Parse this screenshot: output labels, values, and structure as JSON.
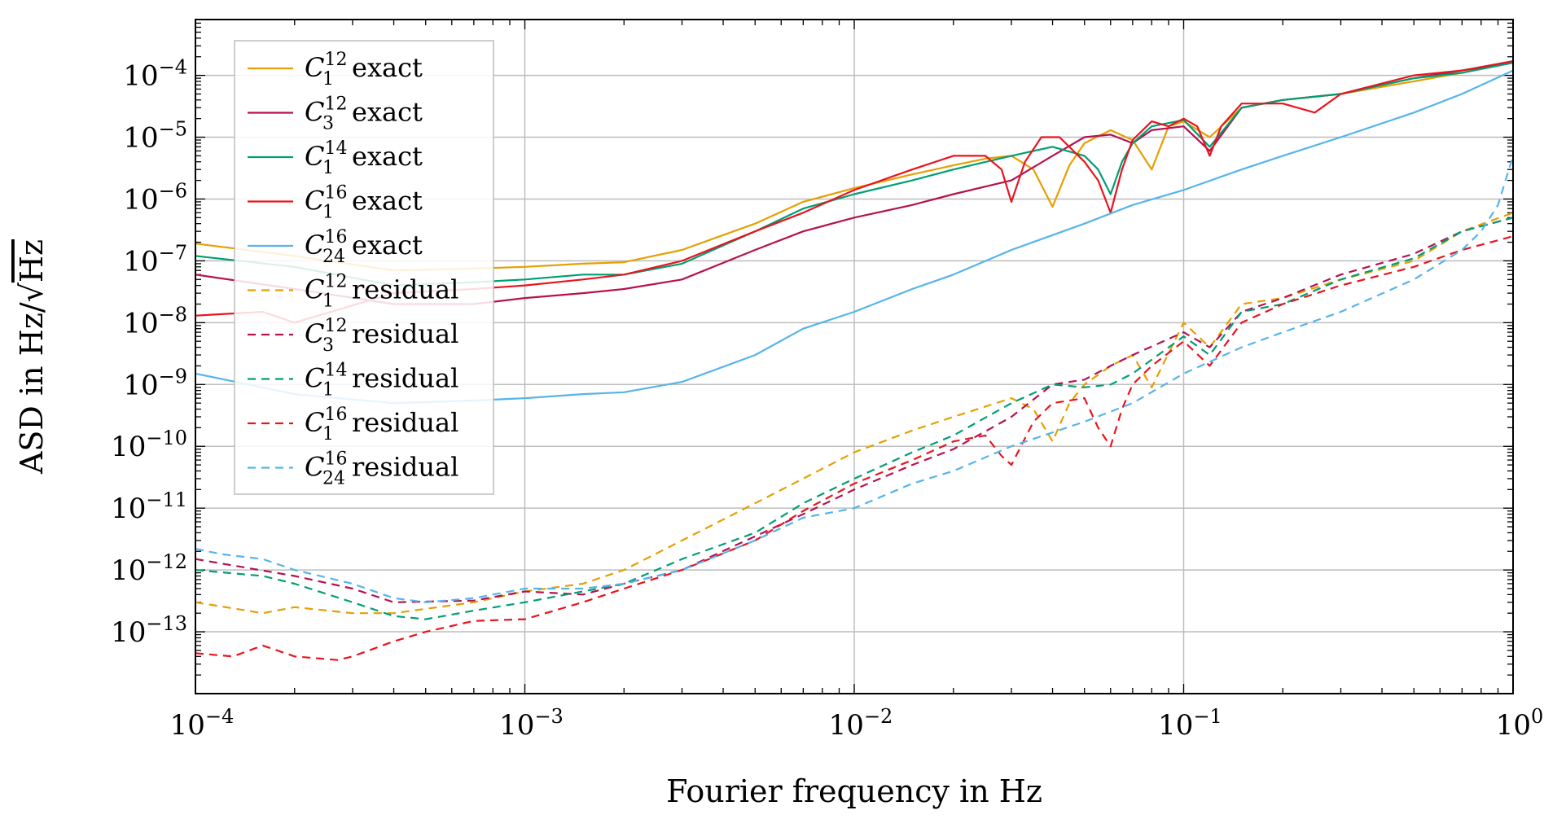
{
  "chart_data": {
    "type": "line",
    "xscale": "log",
    "yscale": "log",
    "xlabel": "Fourier frequency in Hz",
    "ylabel_prefix": "ASD in Hz/",
    "ylabel_radicand": "Hz",
    "xlim": [
      0.0001,
      1
    ],
    "ylim": [
      1e-14,
      0.0008
    ],
    "x_ticks": [
      {
        "base": "10",
        "exp": "−4",
        "value": 0.0001
      },
      {
        "base": "10",
        "exp": "−3",
        "value": 0.001
      },
      {
        "base": "10",
        "exp": "−2",
        "value": 0.01
      },
      {
        "base": "10",
        "exp": "−1",
        "value": 0.1
      },
      {
        "base": "10",
        "exp": "0",
        "value": 1
      }
    ],
    "y_ticks": [
      {
        "base": "10",
        "exp": "−4",
        "value": 0.0001
      },
      {
        "base": "10",
        "exp": "−5",
        "value": 1e-05
      },
      {
        "base": "10",
        "exp": "−6",
        "value": 1e-06
      },
      {
        "base": "10",
        "exp": "−7",
        "value": 1e-07
      },
      {
        "base": "10",
        "exp": "−8",
        "value": 1e-08
      },
      {
        "base": "10",
        "exp": "−9",
        "value": 1e-09
      },
      {
        "base": "10",
        "exp": "−10",
        "value": 1e-10
      },
      {
        "base": "10",
        "exp": "−11",
        "value": 1e-11
      },
      {
        "base": "10",
        "exp": "−12",
        "value": 1e-12
      },
      {
        "base": "10",
        "exp": "−13",
        "value": 1e-13
      }
    ],
    "legend_position": "top-left",
    "series": [
      {
        "name": "C1^12 exact",
        "base": "C",
        "sub": "1",
        "sup": "12",
        "suffix": "exact",
        "color": "#e69f00",
        "dash": "solid",
        "x": [
          0.0001,
          0.0002,
          0.0004,
          0.0007,
          0.001,
          0.0015,
          0.002,
          0.003,
          0.005,
          0.007,
          0.01,
          0.015,
          0.02,
          0.025,
          0.03,
          0.035,
          0.04,
          0.045,
          0.05,
          0.06,
          0.07,
          0.08,
          0.09,
          0.1,
          0.12,
          0.15,
          0.2,
          0.3,
          0.5,
          0.7,
          1
        ],
        "y": [
          1.9e-07,
          1.2e-07,
          7e-08,
          7.5e-08,
          8e-08,
          9e-08,
          9.5e-08,
          1.5e-07,
          4e-07,
          9e-07,
          1.5e-06,
          2.5e-06,
          3.5e-06,
          4.5e-06,
          5e-06,
          3e-06,
          7.5e-07,
          3.5e-06,
          8e-06,
          1.3e-05,
          9e-06,
          3e-06,
          1.5e-05,
          1.8e-05,
          1e-05,
          3e-05,
          4e-05,
          5e-05,
          8e-05,
          0.00011,
          0.00017
        ]
      },
      {
        "name": "C3^12 exact",
        "base": "C",
        "sub": "3",
        "sup": "12",
        "suffix": "exact",
        "color": "#b5124f",
        "dash": "solid",
        "x": [
          0.0001,
          0.0002,
          0.0004,
          0.0007,
          0.001,
          0.0015,
          0.002,
          0.003,
          0.005,
          0.007,
          0.01,
          0.015,
          0.02,
          0.03,
          0.04,
          0.05,
          0.06,
          0.07,
          0.08,
          0.1,
          0.12,
          0.15,
          0.2,
          0.3,
          0.5,
          0.7,
          1
        ],
        "y": [
          6e-08,
          3.5e-08,
          2e-08,
          2e-08,
          2.5e-08,
          3e-08,
          3.5e-08,
          5e-08,
          1.5e-07,
          3e-07,
          5e-07,
          8e-07,
          1.2e-06,
          2e-06,
          5e-06,
          1e-05,
          1.1e-05,
          8e-06,
          1.3e-05,
          1.5e-05,
          6e-06,
          3e-05,
          4e-05,
          5e-05,
          9e-05,
          0.00012,
          0.00016
        ]
      },
      {
        "name": "C1^14 exact",
        "base": "C",
        "sub": "1",
        "sup": "14",
        "suffix": "exact",
        "color": "#009e73",
        "dash": "solid",
        "x": [
          0.0001,
          0.0002,
          0.0004,
          0.0007,
          0.001,
          0.0015,
          0.002,
          0.003,
          0.005,
          0.007,
          0.01,
          0.015,
          0.02,
          0.03,
          0.04,
          0.05,
          0.055,
          0.06,
          0.065,
          0.07,
          0.08,
          0.1,
          0.12,
          0.15,
          0.2,
          0.3,
          0.5,
          0.7,
          1
        ],
        "y": [
          1.2e-07,
          8e-08,
          4e-08,
          4.5e-08,
          5e-08,
          6e-08,
          6e-08,
          9e-08,
          3e-07,
          7e-07,
          1.2e-06,
          2e-06,
          3e-06,
          5e-06,
          7e-06,
          5e-06,
          3e-06,
          1.2e-06,
          4e-06,
          8e-06,
          1.5e-05,
          1.9e-05,
          7e-06,
          3e-05,
          4e-05,
          5e-05,
          9e-05,
          0.00011,
          0.00016
        ]
      },
      {
        "name": "C1^16 exact",
        "base": "C",
        "sub": "1",
        "sup": "16",
        "suffix": "exact",
        "color": "#e8141e",
        "dash": "solid",
        "x": [
          0.0001,
          0.00016,
          0.0002,
          0.0004,
          0.0007,
          0.001,
          0.0015,
          0.002,
          0.003,
          0.005,
          0.007,
          0.01,
          0.015,
          0.02,
          0.025,
          0.028,
          0.03,
          0.033,
          0.037,
          0.042,
          0.05,
          0.055,
          0.06,
          0.065,
          0.07,
          0.08,
          0.09,
          0.1,
          0.11,
          0.12,
          0.13,
          0.15,
          0.2,
          0.25,
          0.3,
          0.5,
          0.7,
          1
        ],
        "y": [
          1.3e-08,
          1.5e-08,
          1e-08,
          3e-08,
          3.5e-08,
          4e-08,
          5e-08,
          6e-08,
          1e-07,
          3e-07,
          6e-07,
          1.4e-06,
          3e-06,
          5e-06,
          5e-06,
          3e-06,
          9e-07,
          4e-06,
          1e-05,
          1e-05,
          4e-06,
          2e-06,
          6e-07,
          3e-06,
          9e-06,
          1.8e-05,
          1.5e-05,
          2e-05,
          1.5e-05,
          5e-06,
          1.5e-05,
          3.5e-05,
          3.5e-05,
          2.5e-05,
          5e-05,
          0.0001,
          0.00012,
          0.00017
        ]
      },
      {
        "name": "C24^16 exact",
        "base": "C",
        "sub": "24",
        "sup": "16",
        "suffix": "exact",
        "color": "#56b4e9",
        "dash": "solid",
        "x": [
          0.0001,
          0.0002,
          0.0004,
          0.0007,
          0.001,
          0.0015,
          0.002,
          0.003,
          0.005,
          0.007,
          0.01,
          0.015,
          0.02,
          0.03,
          0.05,
          0.07,
          0.1,
          0.15,
          0.2,
          0.3,
          0.5,
          0.7,
          1
        ],
        "y": [
          1.5e-09,
          7e-10,
          5e-10,
          5.5e-10,
          6e-10,
          7e-10,
          7.5e-10,
          1.1e-09,
          3e-09,
          8e-09,
          1.5e-08,
          3.5e-08,
          6e-08,
          1.5e-07,
          4e-07,
          8e-07,
          1.4e-06,
          3e-06,
          5e-06,
          1e-05,
          2.5e-05,
          5e-05,
          0.00012
        ]
      },
      {
        "name": "C1^12 residual",
        "base": "C",
        "sub": "1",
        "sup": "12",
        "suffix": "residual",
        "color": "#e69f00",
        "dash": "dashed",
        "x": [
          0.0001,
          0.00016,
          0.0002,
          0.0003,
          0.0004,
          0.0007,
          0.001,
          0.0015,
          0.002,
          0.003,
          0.005,
          0.007,
          0.01,
          0.015,
          0.02,
          0.03,
          0.035,
          0.04,
          0.045,
          0.05,
          0.06,
          0.07,
          0.08,
          0.1,
          0.12,
          0.15,
          0.2,
          0.3,
          0.5,
          0.7,
          1
        ],
        "y": [
          3e-13,
          2e-13,
          2.5e-13,
          2e-13,
          2e-13,
          3e-13,
          4.5e-13,
          6e-13,
          1e-12,
          3e-12,
          1.2e-11,
          3e-11,
          8e-11,
          1.8e-10,
          3e-10,
          6e-10,
          4e-10,
          1.2e-10,
          5e-10,
          1e-09,
          2e-09,
          3e-09,
          9e-10,
          1e-08,
          4e-09,
          2e-08,
          2.5e-08,
          5e-08,
          1e-07,
          3e-07,
          6e-07
        ]
      },
      {
        "name": "C3^12 residual",
        "base": "C",
        "sub": "3",
        "sup": "12",
        "suffix": "residual",
        "color": "#b5124f",
        "dash": "dashed",
        "x": [
          0.0001,
          0.0002,
          0.0003,
          0.0004,
          0.0007,
          0.001,
          0.0015,
          0.002,
          0.003,
          0.005,
          0.007,
          0.01,
          0.015,
          0.02,
          0.03,
          0.04,
          0.05,
          0.06,
          0.07,
          0.1,
          0.12,
          0.15,
          0.2,
          0.3,
          0.5,
          0.7,
          1
        ],
        "y": [
          1.5e-12,
          8e-13,
          5e-13,
          3e-13,
          3.2e-13,
          4.5e-13,
          4e-13,
          6e-13,
          1e-12,
          3.5e-12,
          8e-12,
          2e-11,
          5e-11,
          9e-11,
          3e-10,
          1e-09,
          1.2e-09,
          2e-09,
          3e-09,
          7e-09,
          4e-09,
          1.5e-08,
          2.5e-08,
          6e-08,
          1.3e-07,
          3e-07,
          5e-07
        ]
      },
      {
        "name": "C1^14 residual",
        "base": "C",
        "sub": "1",
        "sup": "14",
        "suffix": "residual",
        "color": "#009e73",
        "dash": "dashed",
        "x": [
          0.0001,
          0.00016,
          0.0002,
          0.0003,
          0.0004,
          0.0005,
          0.0007,
          0.001,
          0.0015,
          0.002,
          0.003,
          0.005,
          0.007,
          0.01,
          0.015,
          0.02,
          0.03,
          0.04,
          0.05,
          0.06,
          0.07,
          0.1,
          0.12,
          0.15,
          0.2,
          0.3,
          0.5,
          0.7,
          1
        ],
        "y": [
          1e-12,
          8e-13,
          6e-13,
          3e-13,
          1.8e-13,
          1.6e-13,
          2.2e-13,
          3e-13,
          4.5e-13,
          6e-13,
          1.5e-12,
          4e-12,
          1.2e-11,
          3e-11,
          8e-11,
          1.5e-10,
          5e-10,
          1e-09,
          9e-10,
          1e-09,
          1.5e-09,
          6e-09,
          3e-09,
          1.5e-08,
          2e-08,
          5e-08,
          1.1e-07,
          3e-07,
          5e-07
        ]
      },
      {
        "name": "C1^16 residual",
        "base": "C",
        "sub": "1",
        "sup": "16",
        "suffix": "residual",
        "color": "#e8141e",
        "dash": "dashed",
        "x": [
          0.0001,
          0.00013,
          0.00016,
          0.0002,
          0.00027,
          0.0003,
          0.0004,
          0.0005,
          0.0007,
          0.001,
          0.0015,
          0.002,
          0.003,
          0.005,
          0.007,
          0.01,
          0.015,
          0.02,
          0.025,
          0.028,
          0.03,
          0.035,
          0.04,
          0.05,
          0.055,
          0.06,
          0.065,
          0.07,
          0.08,
          0.1,
          0.12,
          0.15,
          0.2,
          0.3,
          0.5,
          0.7,
          1
        ],
        "y": [
          4.5e-14,
          4e-14,
          6e-14,
          4e-14,
          3.5e-14,
          4e-14,
          7e-14,
          1e-13,
          1.5e-13,
          1.6e-13,
          3e-13,
          5e-13,
          1e-12,
          3e-12,
          9e-12,
          2.5e-11,
          6e-11,
          1.2e-10,
          1.5e-10,
          7e-11,
          5e-11,
          2.5e-10,
          5e-10,
          6e-10,
          2e-10,
          1e-10,
          4e-10,
          1e-09,
          2e-09,
          5e-09,
          2e-09,
          1e-08,
          2e-08,
          4e-08,
          8e-08,
          1.5e-07,
          2.5e-07
        ]
      },
      {
        "name": "C24^16 residual",
        "base": "C",
        "sub": "24",
        "sup": "16",
        "suffix": "residual",
        "color": "#56b4e9",
        "dash": "dashed",
        "x": [
          0.0001,
          0.00012,
          0.00016,
          0.0002,
          0.0003,
          0.0004,
          0.0005,
          0.0007,
          0.001,
          0.0015,
          0.002,
          0.003,
          0.005,
          0.007,
          0.01,
          0.015,
          0.02,
          0.03,
          0.05,
          0.07,
          0.1,
          0.15,
          0.2,
          0.3,
          0.5,
          0.7,
          0.8,
          0.9,
          1
        ],
        "y": [
          2.2e-12,
          1.8e-12,
          1.5e-12,
          1e-12,
          6e-13,
          3.5e-13,
          3e-13,
          3.5e-13,
          5e-13,
          5e-13,
          6e-13,
          1e-12,
          3e-12,
          7e-12,
          1e-11,
          2.5e-11,
          4e-11,
          1e-10,
          2.5e-10,
          5e-10,
          1.5e-09,
          4e-09,
          7e-09,
          1.5e-08,
          5e-08,
          1.5e-07,
          3e-07,
          8e-07,
          5e-06
        ]
      }
    ]
  }
}
